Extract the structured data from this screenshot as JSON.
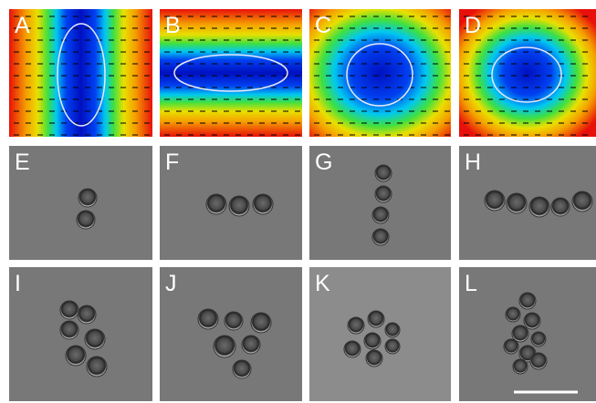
{
  "panels": [
    {
      "label": "A"
    },
    {
      "label": "B"
    },
    {
      "label": "C"
    },
    {
      "label": "D"
    },
    {
      "label": "E"
    },
    {
      "label": "F"
    },
    {
      "label": "G"
    },
    {
      "label": "H"
    },
    {
      "label": "I"
    },
    {
      "label": "J"
    },
    {
      "label": "K"
    },
    {
      "label": "L"
    }
  ]
}
